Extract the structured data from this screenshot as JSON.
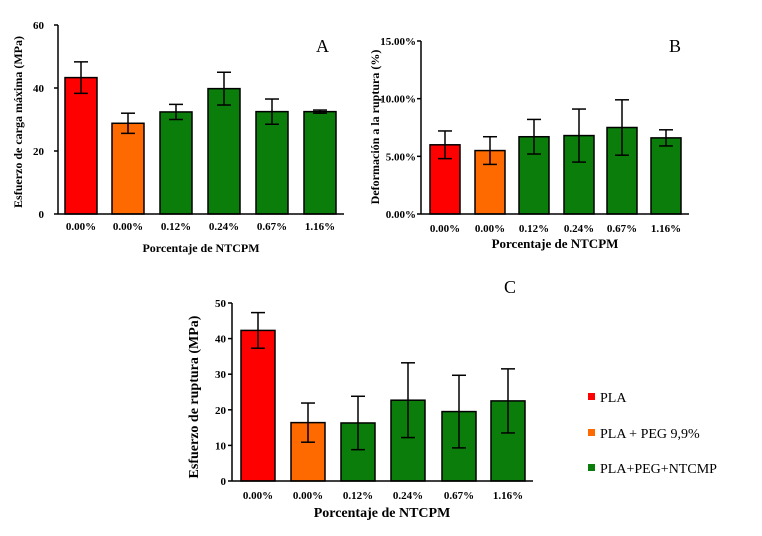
{
  "colors": {
    "pla": "#ff0000",
    "peg": "#ff6a00",
    "ntc": "#0a7d0a",
    "axis": "#000000"
  },
  "chart_data": [
    {
      "type": "bar",
      "panel": "A",
      "categories": [
        "0.00%",
        "0.00%",
        "0.12%",
        "0.24%",
        "0.67%",
        "1.16%"
      ],
      "values": [
        43.3,
        28.8,
        32.4,
        39.8,
        32.5,
        32.5
      ],
      "errors": [
        5.0,
        3.2,
        2.4,
        5.2,
        4.0,
        0.5
      ],
      "groups": [
        "pla",
        "peg",
        "ntc",
        "ntc",
        "ntc",
        "ntc"
      ],
      "ylim": [
        0,
        60
      ],
      "yticks": [
        "0",
        "20",
        "40",
        "60"
      ],
      "xlabel": "Porcentaje de NTCPM",
      "ylabel": "Esfuerzo de carga máxima (MPa)"
    },
    {
      "type": "bar",
      "panel": "B",
      "categories": [
        "0.00%",
        "0.00%",
        "0.12%",
        "0.24%",
        "0.67%",
        "1.16%"
      ],
      "values": [
        6.0,
        5.5,
        6.7,
        6.8,
        7.5,
        6.6
      ],
      "errors": [
        1.2,
        1.2,
        1.5,
        2.3,
        2.4,
        0.7
      ],
      "groups": [
        "pla",
        "peg",
        "ntc",
        "ntc",
        "ntc",
        "ntc"
      ],
      "ylim": [
        0,
        15
      ],
      "yticks": [
        "0.00%",
        "5.00%",
        "10.00%",
        "15.00%"
      ],
      "xlabel": "Porcentaje de NTCPM",
      "ylabel": "Deformación a la ruptura (%)"
    },
    {
      "type": "bar",
      "panel": "C",
      "categories": [
        "0.00%",
        "0.00%",
        "0.12%",
        "0.24%",
        "0.67%",
        "1.16%"
      ],
      "values": [
        42.3,
        16.4,
        16.3,
        22.7,
        19.5,
        22.5
      ],
      "errors": [
        5.0,
        5.5,
        7.5,
        10.5,
        10.2,
        9.0
      ],
      "groups": [
        "pla",
        "peg",
        "ntc",
        "ntc",
        "ntc",
        "ntc"
      ],
      "ylim": [
        0,
        50
      ],
      "yticks": [
        "0",
        "10",
        "20",
        "30",
        "40",
        "50"
      ],
      "xlabel": "Porcentaje de NTCPM",
      "ylabel": "Esfuerzo de ruptura (MPa)"
    }
  ],
  "legend": [
    {
      "key": "pla",
      "label": "PLA"
    },
    {
      "key": "peg",
      "label": "PLA + PEG 9,9%"
    },
    {
      "key": "ntc",
      "label": "PLA+PEG+NTCMP"
    }
  ]
}
